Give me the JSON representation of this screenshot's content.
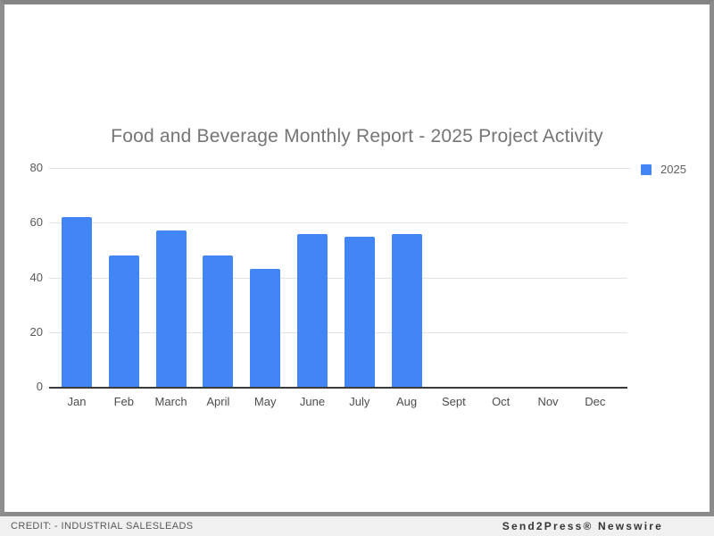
{
  "chart_data": {
    "type": "bar",
    "title": "Food and Beverage Monthly Report - 2025 Project Activity",
    "categories": [
      "Jan",
      "Feb",
      "March",
      "April",
      "May",
      "June",
      "July",
      "Aug",
      "Sept",
      "Oct",
      "Nov",
      "Dec"
    ],
    "series": [
      {
        "name": "2025",
        "values": [
          62,
          48,
          57,
          48,
          43,
          56,
          55,
          56,
          null,
          null,
          null,
          null
        ]
      }
    ],
    "xlabel": "",
    "ylabel": "",
    "ylim": [
      0,
      80
    ],
    "yticks": [
      0,
      20,
      40,
      60,
      80
    ],
    "grid": true,
    "legend_position": "right-top"
  },
  "colors": {
    "bar": "#4285f4",
    "title_text": "#757575",
    "axis_text": "#4c4c4c",
    "gridline": "#e3e3e3",
    "baseline": "#3b3b3b",
    "frame_border": "#8b8b8b",
    "footer_bg": "#f0f0f0"
  },
  "footer": {
    "credit": "CREDIT: - INDUSTRIAL SALESLEADS",
    "newswire": "Send2Press® Newswire"
  }
}
